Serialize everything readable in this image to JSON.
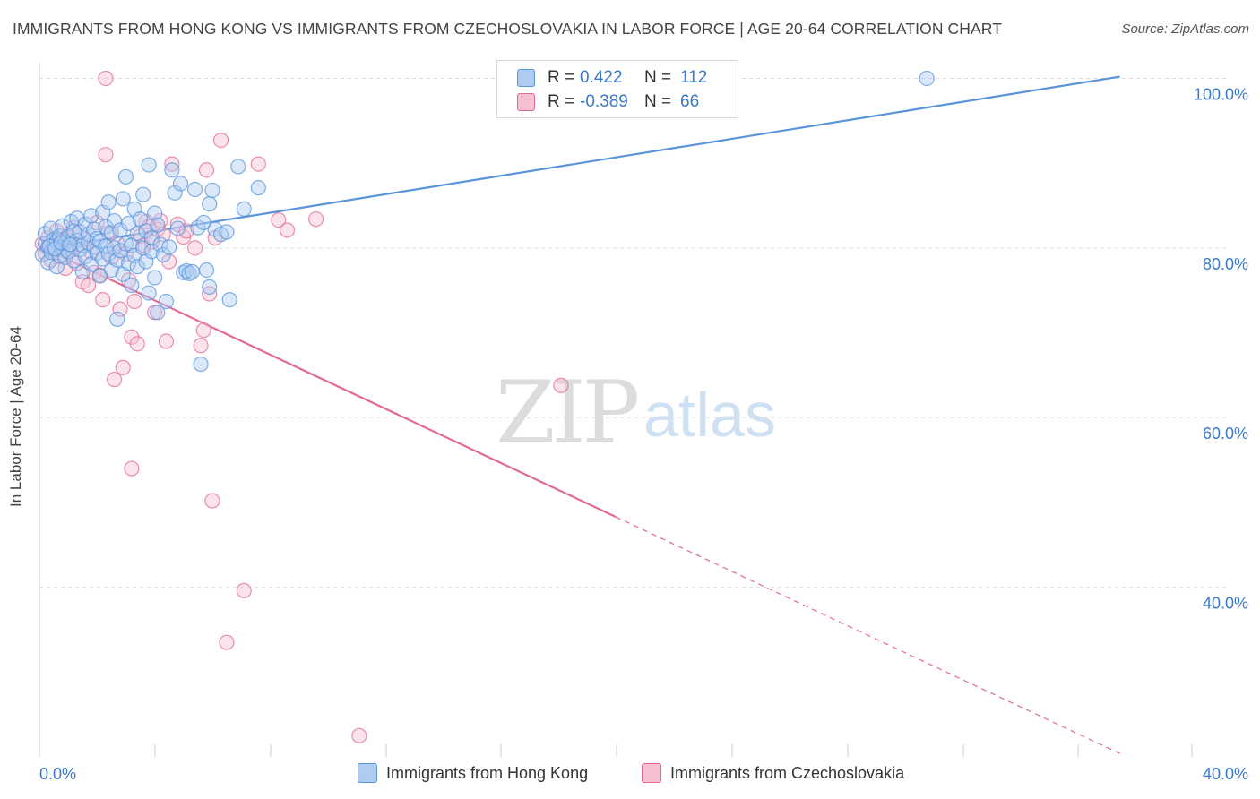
{
  "header": {
    "title": "IMMIGRANTS FROM HONG KONG VS IMMIGRANTS FROM CZECHOSLOVAKIA IN LABOR FORCE | AGE 20-64 CORRELATION CHART",
    "source": "Source: ZipAtlas.com"
  },
  "watermark": {
    "zip": "ZIP",
    "atlas": "atlas"
  },
  "stats": {
    "r_label": "R =",
    "n_label": "N =",
    "hk": {
      "r": "0.422",
      "n": "112",
      "color": "#aecbf2"
    },
    "cz": {
      "r": "-0.389",
      "n": "66",
      "color": "#f7c0d2"
    }
  },
  "legend": {
    "hk_label": "Immigrants from Hong Kong",
    "cz_label": "Immigrants from Czechoslovakia"
  },
  "chart_data": {
    "type": "scatter",
    "title": "IMMIGRANTS FROM HONG KONG VS IMMIGRANTS FROM CZECHOSLOVAKIA IN LABOR FORCE | AGE 20-64 CORRELATION CHART",
    "xlabel": "",
    "ylabel": "In Labor Force | Age 20-64",
    "xlim": [
      0,
      40
    ],
    "ylim": [
      20,
      101
    ],
    "x_ticks": [
      "0.0%",
      "40.0%"
    ],
    "y_ticks": [
      "100.0%",
      "80.0%",
      "60.0%",
      "40.0%"
    ],
    "y_tick_values": [
      100,
      80,
      60,
      40
    ],
    "grid": true,
    "legend_position": "bottom",
    "series": [
      {
        "name": "Immigrants from Hong Kong",
        "color": "#5a94db",
        "fill": "#aecbf2",
        "r": 0.422,
        "n": 112,
        "trend": {
          "x": [
            0,
            37.5
          ],
          "y": [
            79.8,
            100.2
          ],
          "style": "solid"
        },
        "points": [
          [
            0.1,
            79.2
          ],
          [
            0.2,
            80.5
          ],
          [
            0.2,
            81.7
          ],
          [
            0.3,
            78.3
          ],
          [
            0.3,
            80.1
          ],
          [
            0.4,
            82.3
          ],
          [
            0.4,
            79.5
          ],
          [
            0.5,
            81.0
          ],
          [
            0.5,
            80.2
          ],
          [
            0.6,
            77.8
          ],
          [
            0.6,
            80.8
          ],
          [
            0.7,
            79.1
          ],
          [
            0.7,
            81.4
          ],
          [
            0.8,
            80.0
          ],
          [
            0.8,
            82.6
          ],
          [
            0.9,
            78.9
          ],
          [
            0.9,
            80.7
          ],
          [
            1.0,
            81.3
          ],
          [
            1.0,
            79.6
          ],
          [
            1.1,
            83.1
          ],
          [
            1.1,
            80.4
          ],
          [
            1.2,
            82.0
          ],
          [
            1.2,
            78.5
          ],
          [
            1.3,
            80.9
          ],
          [
            1.3,
            83.5
          ],
          [
            1.4,
            79.8
          ],
          [
            1.4,
            81.9
          ],
          [
            1.5,
            77.2
          ],
          [
            1.5,
            80.3
          ],
          [
            1.6,
            82.8
          ],
          [
            1.6,
            79.0
          ],
          [
            1.7,
            81.6
          ],
          [
            1.7,
            80.6
          ],
          [
            1.8,
            78.1
          ],
          [
            1.8,
            83.8
          ],
          [
            1.9,
            80.1
          ],
          [
            1.9,
            82.2
          ],
          [
            2.0,
            79.4
          ],
          [
            2.0,
            81.1
          ],
          [
            2.1,
            76.7
          ],
          [
            2.1,
            80.8
          ],
          [
            2.2,
            84.2
          ],
          [
            2.2,
            78.7
          ],
          [
            2.3,
            82.5
          ],
          [
            2.3,
            80.2
          ],
          [
            2.4,
            79.3
          ],
          [
            2.4,
            85.4
          ],
          [
            2.5,
            81.8
          ],
          [
            2.5,
            77.4
          ],
          [
            2.6,
            80.0
          ],
          [
            2.6,
            83.2
          ],
          [
            2.7,
            78.6
          ],
          [
            2.7,
            71.6
          ],
          [
            2.8,
            82.1
          ],
          [
            2.8,
            79.7
          ],
          [
            2.9,
            85.8
          ],
          [
            2.9,
            76.9
          ],
          [
            3.0,
            80.5
          ],
          [
            3.0,
            88.4
          ],
          [
            3.1,
            78.2
          ],
          [
            3.1,
            82.9
          ],
          [
            3.2,
            75.6
          ],
          [
            3.2,
            80.3
          ],
          [
            3.3,
            84.6
          ],
          [
            3.3,
            79.1
          ],
          [
            3.4,
            81.7
          ],
          [
            3.4,
            77.8
          ],
          [
            3.5,
            83.4
          ],
          [
            3.6,
            80.0
          ],
          [
            3.6,
            86.3
          ],
          [
            3.7,
            78.4
          ],
          [
            3.7,
            82.0
          ],
          [
            3.8,
            74.7
          ],
          [
            3.8,
            89.8
          ],
          [
            3.9,
            81.2
          ],
          [
            3.9,
            79.6
          ],
          [
            4.0,
            84.1
          ],
          [
            4.0,
            76.5
          ],
          [
            4.1,
            82.7
          ],
          [
            4.1,
            72.4
          ],
          [
            4.2,
            80.4
          ],
          [
            4.3,
            79.2
          ],
          [
            4.4,
            73.7
          ],
          [
            4.5,
            80.1
          ],
          [
            4.6,
            89.2
          ],
          [
            4.7,
            86.5
          ],
          [
            4.8,
            82.3
          ],
          [
            4.9,
            87.6
          ],
          [
            5.0,
            77.1
          ],
          [
            5.1,
            77.3
          ],
          [
            5.2,
            77.0
          ],
          [
            5.3,
            77.2
          ],
          [
            5.4,
            86.9
          ],
          [
            5.5,
            82.4
          ],
          [
            5.6,
            66.3
          ],
          [
            5.7,
            83.0
          ],
          [
            5.8,
            77.4
          ],
          [
            5.9,
            85.2
          ],
          [
            5.9,
            75.4
          ],
          [
            6.0,
            86.8
          ],
          [
            6.1,
            82.2
          ],
          [
            6.3,
            81.6
          ],
          [
            6.5,
            81.9
          ],
          [
            6.6,
            73.9
          ],
          [
            6.9,
            89.6
          ],
          [
            7.1,
            84.6
          ],
          [
            7.6,
            87.1
          ],
          [
            0.35,
            80.2
          ],
          [
            0.55,
            79.9
          ],
          [
            0.75,
            80.6
          ],
          [
            1.05,
            80.4
          ],
          [
            30.8,
            100.0
          ]
        ]
      },
      {
        "name": "Immigrants from Czechoslovakia",
        "color": "#e36996",
        "fill": "#f7c0d2",
        "r": -0.389,
        "n": 66,
        "trend": {
          "x": [
            0,
            20
          ],
          "y": [
            80.2,
            48.3
          ],
          "style": "solid",
          "extension": {
            "x": [
              20,
              37.5
            ],
            "y": [
              48.3,
              20.4
            ],
            "style": "dashed"
          }
        },
        "points": [
          [
            0.1,
            80.5
          ],
          [
            0.2,
            79.4
          ],
          [
            0.3,
            81.2
          ],
          [
            0.4,
            78.6
          ],
          [
            0.5,
            80.1
          ],
          [
            0.6,
            82.0
          ],
          [
            0.7,
            79.0
          ],
          [
            0.8,
            80.8
          ],
          [
            0.9,
            77.6
          ],
          [
            1.0,
            81.5
          ],
          [
            1.1,
            79.8
          ],
          [
            1.2,
            82.4
          ],
          [
            1.3,
            78.2
          ],
          [
            1.4,
            80.4
          ],
          [
            1.5,
            76.0
          ],
          [
            1.6,
            81.0
          ],
          [
            1.7,
            75.6
          ],
          [
            1.8,
            79.5
          ],
          [
            1.9,
            77.1
          ],
          [
            2.0,
            83.0
          ],
          [
            2.1,
            76.8
          ],
          [
            2.2,
            73.9
          ],
          [
            2.3,
            91.0
          ],
          [
            2.4,
            81.8
          ],
          [
            2.5,
            78.9
          ],
          [
            2.6,
            64.5
          ],
          [
            2.7,
            80.6
          ],
          [
            2.8,
            72.8
          ],
          [
            2.9,
            65.9
          ],
          [
            3.0,
            79.3
          ],
          [
            3.1,
            76.2
          ],
          [
            3.2,
            54.0
          ],
          [
            3.2,
            69.5
          ],
          [
            3.3,
            73.7
          ],
          [
            3.4,
            68.7
          ],
          [
            3.5,
            81.4
          ],
          [
            3.6,
            80.3
          ],
          [
            3.7,
            83.1
          ],
          [
            3.8,
            82.5
          ],
          [
            3.9,
            80.7
          ],
          [
            4.0,
            72.4
          ],
          [
            4.1,
            82.2
          ],
          [
            4.2,
            83.2
          ],
          [
            4.3,
            81.6
          ],
          [
            4.4,
            69.0
          ],
          [
            4.5,
            78.4
          ],
          [
            4.6,
            89.9
          ],
          [
            4.8,
            82.8
          ],
          [
            5.0,
            81.3
          ],
          [
            5.1,
            82.0
          ],
          [
            5.4,
            80.0
          ],
          [
            5.6,
            68.5
          ],
          [
            5.7,
            70.3
          ],
          [
            5.8,
            89.2
          ],
          [
            5.9,
            74.6
          ],
          [
            6.0,
            50.2
          ],
          [
            6.1,
            81.2
          ],
          [
            6.3,
            92.7
          ],
          [
            6.5,
            33.5
          ],
          [
            7.1,
            39.6
          ],
          [
            7.6,
            89.9
          ],
          [
            8.3,
            83.3
          ],
          [
            8.6,
            82.1
          ],
          [
            9.6,
            83.4
          ],
          [
            11.1,
            22.5
          ],
          [
            18.1,
            63.8
          ],
          [
            2.3,
            100.0
          ]
        ]
      }
    ]
  }
}
